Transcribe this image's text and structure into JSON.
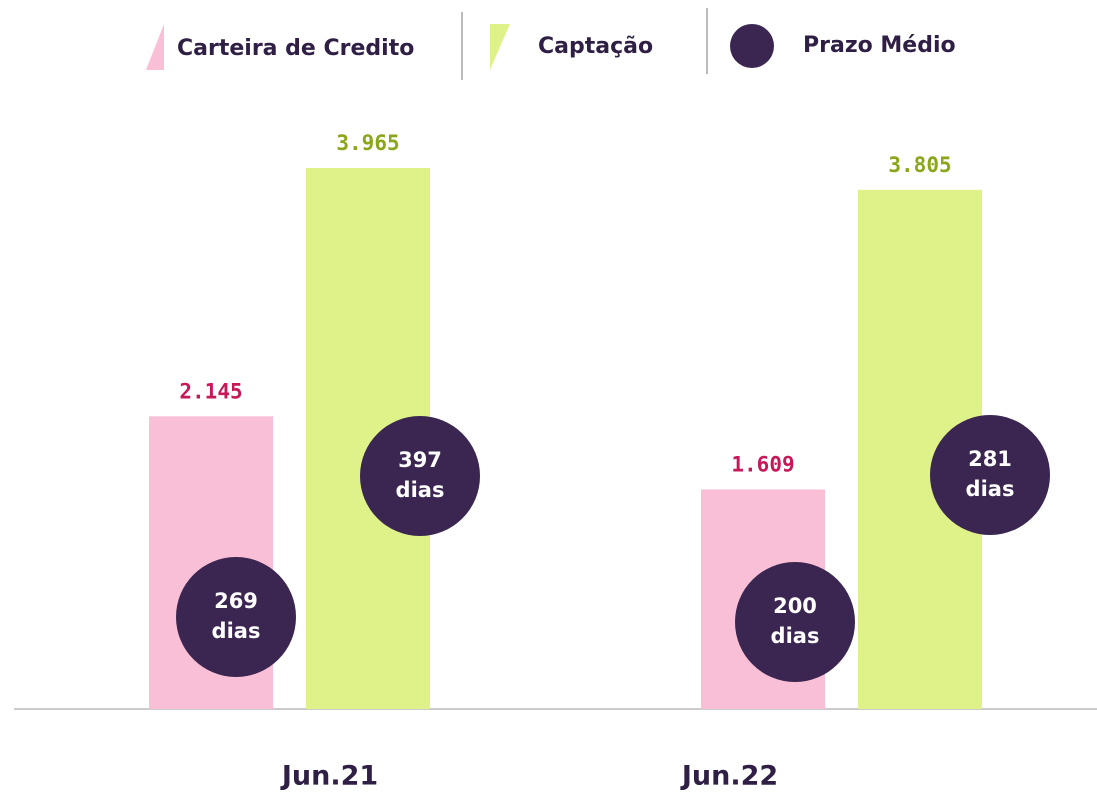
{
  "chart_data": {
    "type": "bar",
    "categories": [
      "Jun.21",
      "Jun.22"
    ],
    "series": [
      {
        "name": "Carteira de Credito",
        "color": "#f8bfd6",
        "label_color": "#c8185a",
        "values": [
          2145,
          1609
        ],
        "value_labels": [
          "2.145",
          "1.609"
        ]
      },
      {
        "name": "Captação",
        "color": "#dff28a",
        "label_color": "#8aa61a",
        "values": [
          3965,
          3805
        ],
        "value_labels": [
          "3.965",
          "3.805"
        ]
      },
      {
        "name": "Prazo Médio",
        "color": "#3a2650",
        "unit": "dias",
        "values": [
          [
            269,
            397
          ],
          [
            200,
            281
          ]
        ]
      }
    ]
  }
}
